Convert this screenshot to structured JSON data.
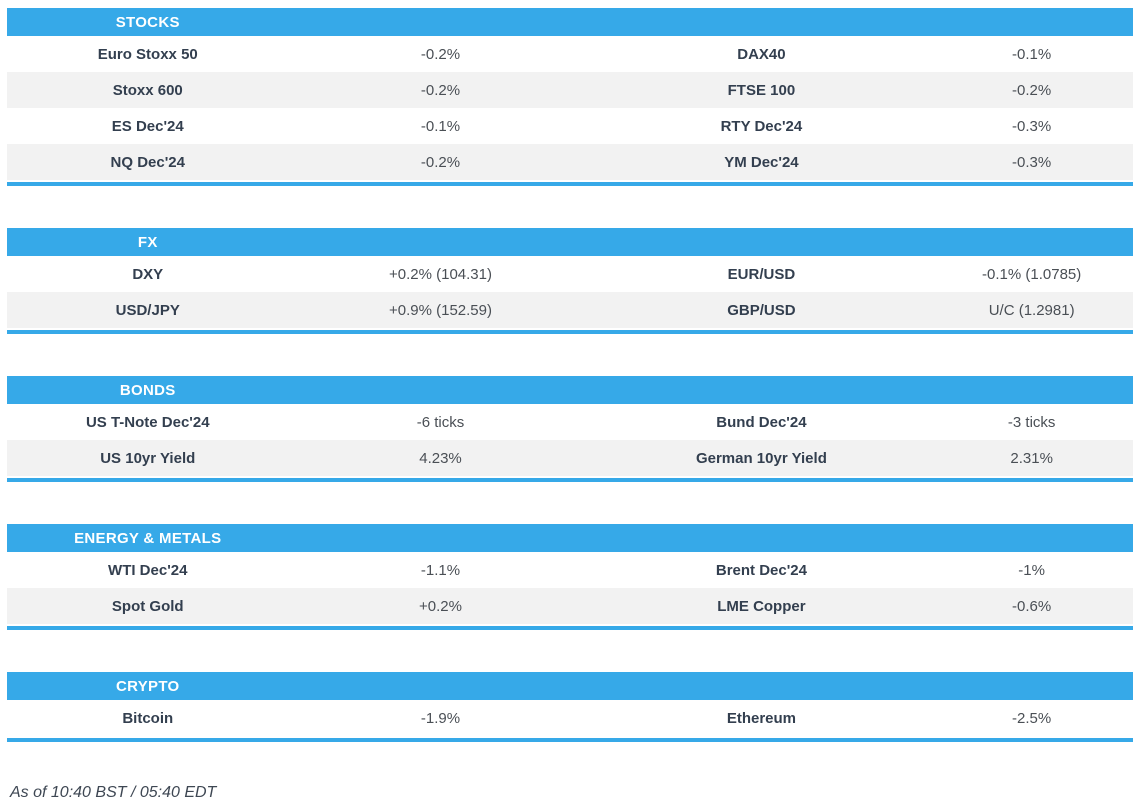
{
  "colors": {
    "accent": "#36A9E8",
    "row_alt": "#F2F2F2",
    "header_text": "#FFFFFF",
    "name_text": "#333F4F",
    "value_text": "#4A4F55",
    "footer_text": "#3E4753"
  },
  "sections": [
    {
      "title": "STOCKS",
      "rows": [
        {
          "c": [
            "Euro Stoxx 50",
            "-0.2%",
            "DAX40",
            "-0.1%"
          ]
        },
        {
          "c": [
            "Stoxx 600",
            "-0.2%",
            "FTSE 100",
            "-0.2%"
          ]
        },
        {
          "c": [
            "ES Dec'24",
            "-0.1%",
            "RTY Dec'24",
            "-0.3%"
          ]
        },
        {
          "c": [
            "NQ Dec'24",
            "-0.2%",
            "YM Dec'24",
            "-0.3%"
          ]
        }
      ]
    },
    {
      "title": "FX",
      "rows": [
        {
          "c": [
            "DXY",
            "+0.2% (104.31)",
            "EUR/USD",
            "-0.1% (1.0785)"
          ]
        },
        {
          "c": [
            "USD/JPY",
            "+0.9% (152.59)",
            "GBP/USD",
            "U/C (1.2981)"
          ]
        }
      ]
    },
    {
      "title": "BONDS",
      "rows": [
        {
          "c": [
            "US T-Note Dec'24",
            "-6 ticks",
            "Bund Dec'24",
            "-3 ticks"
          ]
        },
        {
          "c": [
            "US 10yr Yield",
            "4.23%",
            "German 10yr Yield",
            "2.31%"
          ]
        }
      ]
    },
    {
      "title": "ENERGY & METALS",
      "rows": [
        {
          "c": [
            "WTI Dec'24",
            "-1.1%",
            "Brent Dec'24",
            "-1%"
          ]
        },
        {
          "c": [
            "Spot Gold",
            "+0.2%",
            "LME Copper",
            "-0.6%"
          ]
        }
      ]
    },
    {
      "title": "CRYPTO",
      "rows": [
        {
          "c": [
            "Bitcoin",
            "-1.9%",
            "Ethereum",
            "-2.5%"
          ]
        }
      ]
    }
  ],
  "footer": {
    "as_of": "As of 10:40 BST / 05:40 EDT"
  }
}
